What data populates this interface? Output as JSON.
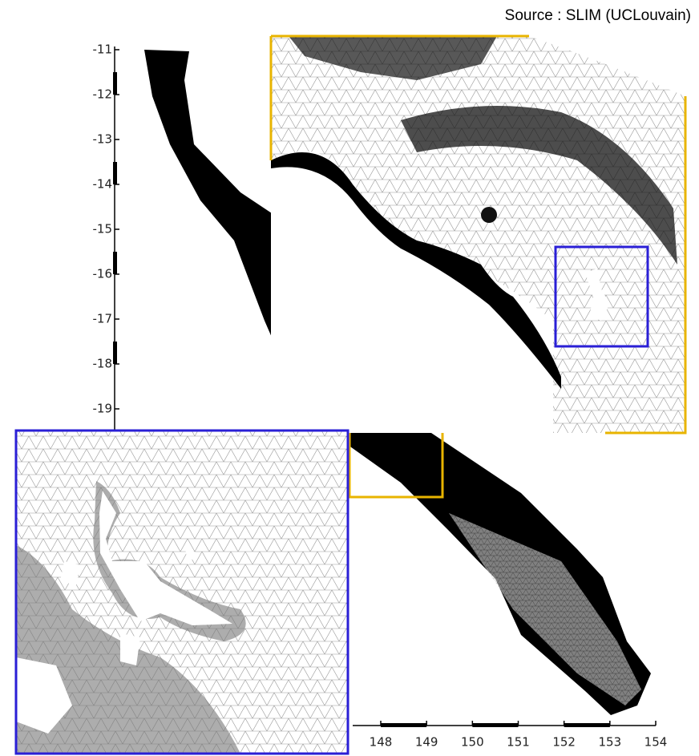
{
  "source": "Source : SLIM (UCLouvain)",
  "y_axis": {
    "ticks": [
      -11,
      -12,
      -13,
      -14,
      -15,
      -16,
      -17,
      -18,
      -19
    ]
  },
  "x_axis": {
    "ticks": [
      148,
      149,
      150,
      151,
      152,
      153,
      154
    ]
  }
}
